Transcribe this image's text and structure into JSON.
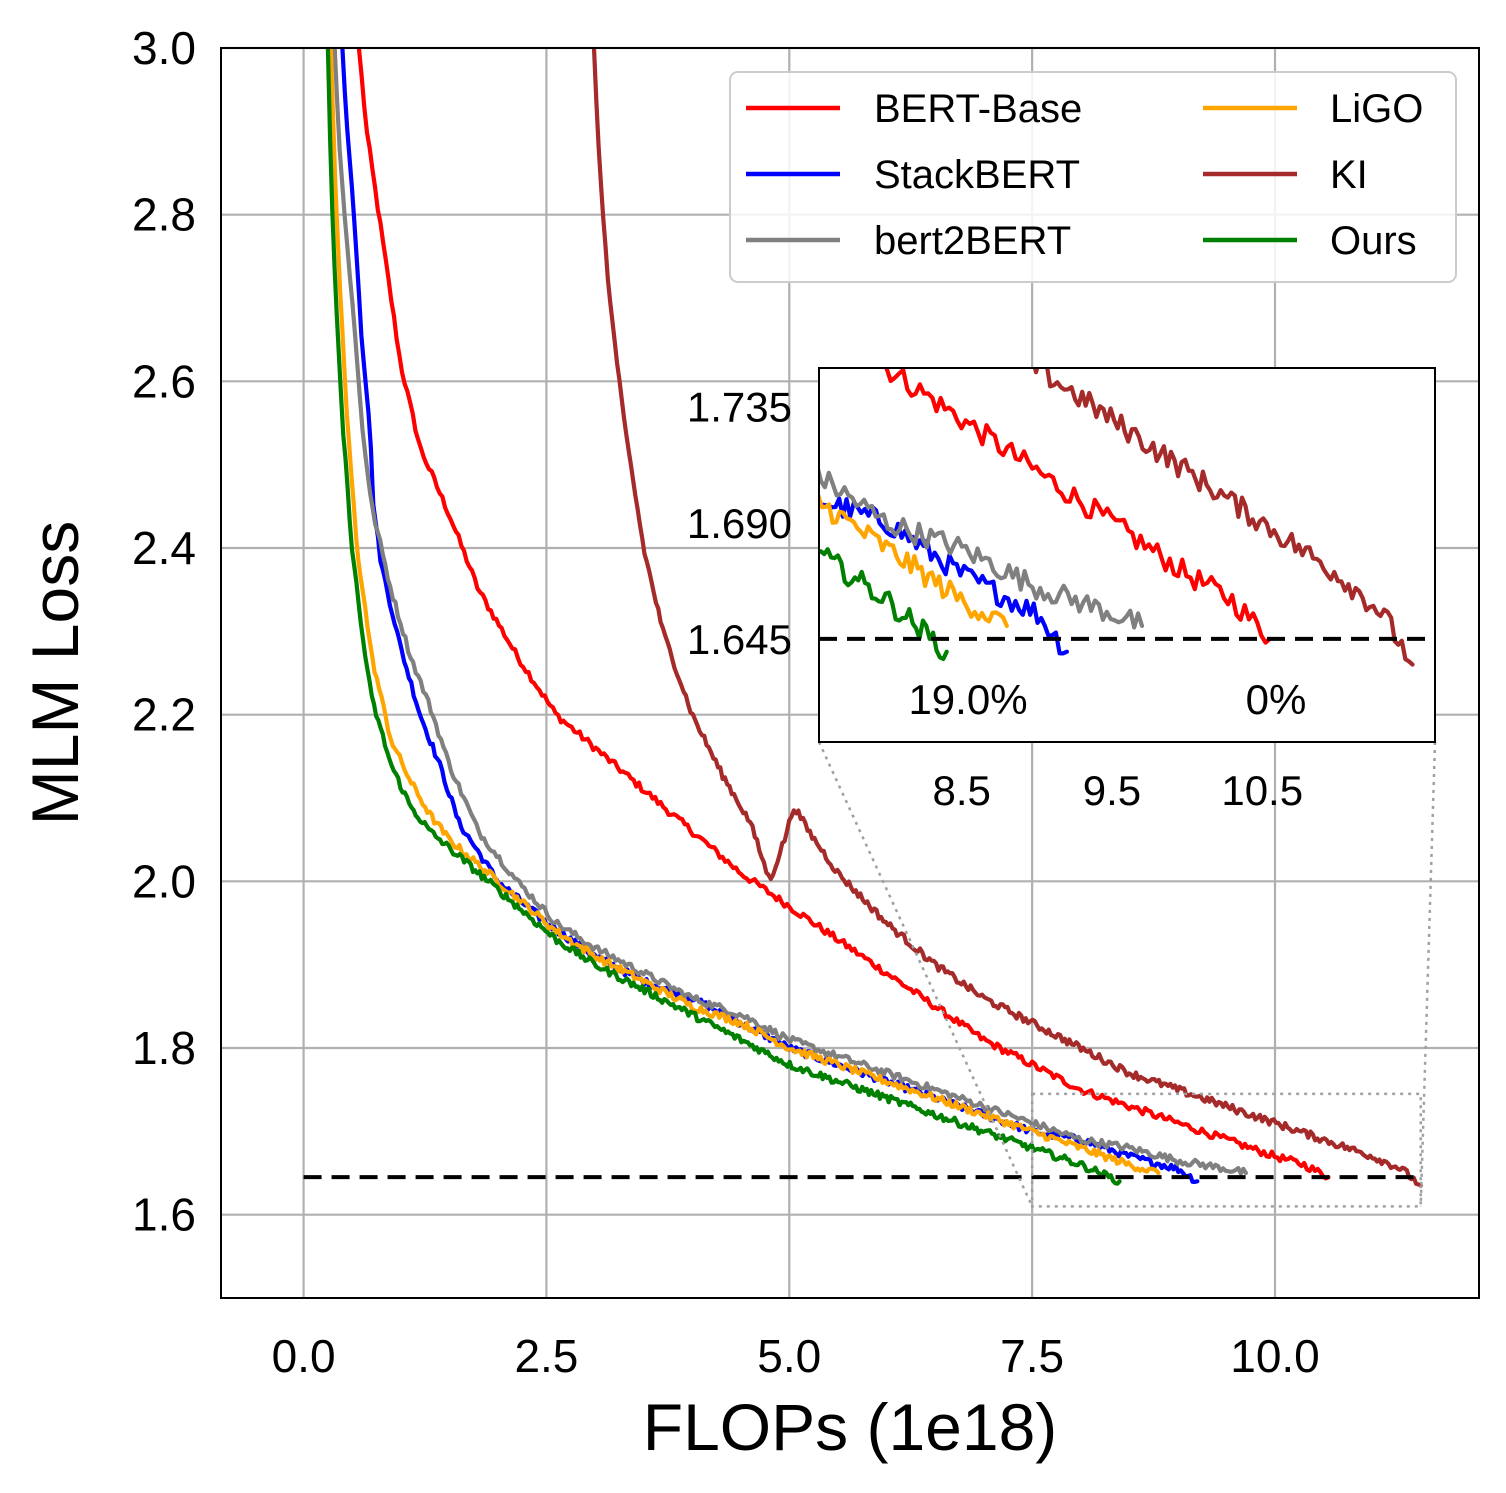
{
  "chart_data": {
    "type": "line",
    "xlabel": "FLOPs (1e18)",
    "ylabel": "MLM Loss",
    "xlim": [
      -0.85,
      12.1
    ],
    "ylim": [
      1.5,
      3.0
    ],
    "xticks": [
      "0.0",
      "2.5",
      "5.0",
      "7.5",
      "10.0"
    ],
    "xtick_values": [
      0,
      2.5,
      5.0,
      7.5,
      10.0
    ],
    "yticks": [
      "1.6",
      "1.8",
      "2.0",
      "2.2",
      "2.4",
      "2.6",
      "2.8",
      "3.0"
    ],
    "ytick_values": [
      1.6,
      1.8,
      2.0,
      2.2,
      2.4,
      2.6,
      2.8,
      3.0
    ],
    "grid": true,
    "legend_position": "top-right",
    "target_loss": 1.645,
    "target_x_range": [
      0.0,
      11.5
    ],
    "series": [
      {
        "name": "BERT-Base",
        "color": "#ff0000",
        "points": [
          [
            0.57,
            3.0
          ],
          [
            0.65,
            2.9
          ],
          [
            0.8,
            2.78
          ],
          [
            1.0,
            2.62
          ],
          [
            1.2,
            2.52
          ],
          [
            1.5,
            2.44
          ],
          [
            1.8,
            2.35
          ],
          [
            2.2,
            2.27
          ],
          [
            2.6,
            2.2
          ],
          [
            3.0,
            2.16
          ],
          [
            3.5,
            2.11
          ],
          [
            4.0,
            2.06
          ],
          [
            4.5,
            2.01
          ],
          [
            5.0,
            1.97
          ],
          [
            5.5,
            1.93
          ],
          [
            6.0,
            1.89
          ],
          [
            6.5,
            1.85
          ],
          [
            7.0,
            1.81
          ],
          [
            7.5,
            1.78
          ],
          [
            8.0,
            1.75
          ],
          [
            8.5,
            1.73
          ],
          [
            9.0,
            1.71
          ],
          [
            9.5,
            1.69
          ],
          [
            10.0,
            1.67
          ],
          [
            10.3,
            1.66
          ],
          [
            10.55,
            1.645
          ]
        ]
      },
      {
        "name": "StackBERT",
        "color": "#0000ff",
        "points": [
          [
            0.4,
            3.0
          ],
          [
            0.45,
            2.9
          ],
          [
            0.52,
            2.8
          ],
          [
            0.6,
            2.65
          ],
          [
            0.68,
            2.55
          ],
          [
            0.72,
            2.45
          ],
          [
            0.8,
            2.38
          ],
          [
            1.0,
            2.28
          ],
          [
            1.2,
            2.2
          ],
          [
            1.4,
            2.14
          ],
          [
            1.6,
            2.07
          ],
          [
            2.0,
            2.0
          ],
          [
            2.5,
            1.95
          ],
          [
            3.0,
            1.91
          ],
          [
            3.5,
            1.88
          ],
          [
            4.0,
            1.86
          ],
          [
            4.5,
            1.83
          ],
          [
            5.0,
            1.8
          ],
          [
            5.5,
            1.78
          ],
          [
            6.0,
            1.76
          ],
          [
            6.5,
            1.74
          ],
          [
            7.0,
            1.72
          ],
          [
            7.5,
            1.7
          ],
          [
            8.0,
            1.69
          ],
          [
            8.5,
            1.67
          ],
          [
            9.0,
            1.655
          ],
          [
            9.2,
            1.64
          ]
        ]
      },
      {
        "name": "bert2BERT",
        "color": "#808080",
        "points": [
          [
            0.32,
            3.0
          ],
          [
            0.36,
            2.9
          ],
          [
            0.42,
            2.8
          ],
          [
            0.5,
            2.7
          ],
          [
            0.6,
            2.55
          ],
          [
            0.7,
            2.45
          ],
          [
            0.9,
            2.35
          ],
          [
            1.1,
            2.27
          ],
          [
            1.3,
            2.21
          ],
          [
            1.5,
            2.14
          ],
          [
            1.8,
            2.06
          ],
          [
            2.2,
            2.0
          ],
          [
            2.6,
            1.95
          ],
          [
            3.0,
            1.92
          ],
          [
            3.5,
            1.89
          ],
          [
            4.0,
            1.86
          ],
          [
            4.5,
            1.84
          ],
          [
            5.0,
            1.81
          ],
          [
            5.5,
            1.79
          ],
          [
            6.0,
            1.77
          ],
          [
            6.5,
            1.75
          ],
          [
            7.0,
            1.73
          ],
          [
            7.5,
            1.71
          ],
          [
            8.0,
            1.69
          ],
          [
            8.5,
            1.68
          ],
          [
            9.0,
            1.665
          ],
          [
            9.5,
            1.655
          ],
          [
            9.7,
            1.65
          ]
        ]
      },
      {
        "name": "LiGO",
        "color": "#ffa500",
        "points": [
          [
            0.28,
            3.0
          ],
          [
            0.32,
            2.85
          ],
          [
            0.38,
            2.7
          ],
          [
            0.45,
            2.55
          ],
          [
            0.55,
            2.4
          ],
          [
            0.7,
            2.27
          ],
          [
            0.9,
            2.17
          ],
          [
            1.1,
            2.12
          ],
          [
            1.3,
            2.08
          ],
          [
            1.5,
            2.05
          ],
          [
            1.8,
            2.02
          ],
          [
            2.2,
            1.98
          ],
          [
            2.6,
            1.94
          ],
          [
            3.0,
            1.91
          ],
          [
            3.5,
            1.88
          ],
          [
            4.0,
            1.85
          ],
          [
            4.5,
            1.83
          ],
          [
            5.0,
            1.8
          ],
          [
            5.5,
            1.78
          ],
          [
            6.0,
            1.76
          ],
          [
            6.5,
            1.74
          ],
          [
            7.0,
            1.72
          ],
          [
            7.5,
            1.7
          ],
          [
            8.0,
            1.68
          ],
          [
            8.5,
            1.66
          ],
          [
            8.8,
            1.65
          ]
        ]
      },
      {
        "name": "KI",
        "color": "#a52a2a",
        "points": [
          [
            2.99,
            3.0
          ],
          [
            3.05,
            2.85
          ],
          [
            3.15,
            2.7
          ],
          [
            3.3,
            2.55
          ],
          [
            3.5,
            2.4
          ],
          [
            3.7,
            2.3
          ],
          [
            4.0,
            2.2
          ],
          [
            4.3,
            2.13
          ],
          [
            4.6,
            2.07
          ],
          [
            4.8,
            2.0
          ],
          [
            4.95,
            2.05
          ],
          [
            5.05,
            2.09
          ],
          [
            5.2,
            2.06
          ],
          [
            5.5,
            2.01
          ],
          [
            6.0,
            1.95
          ],
          [
            6.5,
            1.9
          ],
          [
            7.0,
            1.86
          ],
          [
            7.5,
            1.83
          ],
          [
            8.0,
            1.8
          ],
          [
            8.5,
            1.77
          ],
          [
            9.0,
            1.75
          ],
          [
            9.5,
            1.73
          ],
          [
            10.0,
            1.71
          ],
          [
            10.5,
            1.69
          ],
          [
            11.0,
            1.67
          ],
          [
            11.3,
            1.655
          ],
          [
            11.5,
            1.635
          ]
        ]
      },
      {
        "name": "Ours",
        "color": "#008000",
        "points": [
          [
            0.25,
            3.0
          ],
          [
            0.28,
            2.85
          ],
          [
            0.33,
            2.7
          ],
          [
            0.4,
            2.55
          ],
          [
            0.5,
            2.4
          ],
          [
            0.6,
            2.3
          ],
          [
            0.7,
            2.22
          ],
          [
            0.9,
            2.14
          ],
          [
            1.1,
            2.09
          ],
          [
            1.3,
            2.06
          ],
          [
            1.5,
            2.04
          ],
          [
            1.8,
            2.01
          ],
          [
            2.2,
            1.97
          ],
          [
            2.6,
            1.93
          ],
          [
            3.0,
            1.9
          ],
          [
            3.5,
            1.87
          ],
          [
            4.0,
            1.84
          ],
          [
            4.5,
            1.81
          ],
          [
            5.0,
            1.78
          ],
          [
            5.5,
            1.76
          ],
          [
            6.0,
            1.74
          ],
          [
            6.5,
            1.72
          ],
          [
            7.0,
            1.7
          ],
          [
            7.5,
            1.68
          ],
          [
            8.0,
            1.66
          ],
          [
            8.4,
            1.64
          ]
        ]
      }
    ],
    "inset": {
      "xlim": [
        7.55,
        11.65
      ],
      "ylim": [
        1.605,
        1.75
      ],
      "xticks": [
        "8.5",
        "9.5",
        "10.5"
      ],
      "xtick_values": [
        8.5,
        9.5,
        10.5
      ],
      "yticks": [
        "1.735",
        "1.690",
        "1.645"
      ],
      "ytick_values": [
        1.735,
        1.69,
        1.645
      ],
      "annotations": [
        "19.0%",
        "0%"
      ],
      "source_region": {
        "x": [
          7.5,
          11.5
        ],
        "y": [
          1.61,
          1.745
        ]
      }
    }
  }
}
